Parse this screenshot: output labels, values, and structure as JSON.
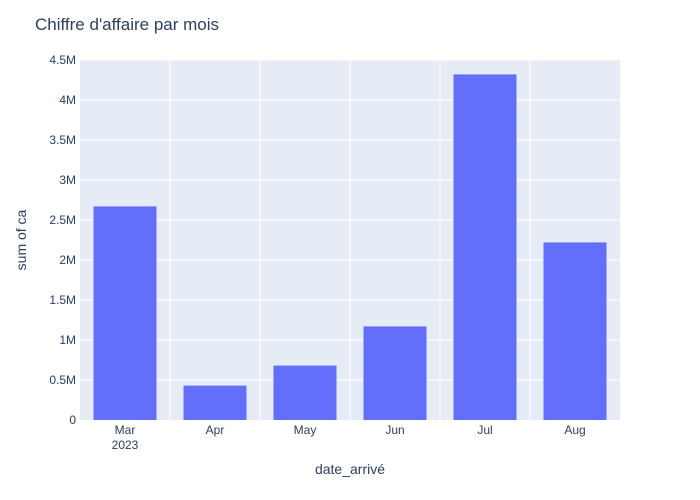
{
  "chart_data": {
    "type": "bar",
    "title": "Chiffre d'affaire par mois",
    "xlabel": "date_arrivé",
    "ylabel": "sum of ca",
    "categories": [
      "Mar",
      "Apr",
      "May",
      "Jun",
      "Jul",
      "Aug"
    ],
    "category_sublabels": [
      "2023",
      "",
      "",
      "",
      "",
      ""
    ],
    "values": [
      2670000,
      430000,
      680000,
      1170000,
      4320000,
      2220000
    ],
    "ylim": [
      0,
      4500000
    ],
    "yticks": [
      0,
      500000,
      1000000,
      1500000,
      2000000,
      2500000,
      3000000,
      3500000,
      4000000,
      4500000
    ],
    "ytick_labels": [
      "0",
      "0.5M",
      "1M",
      "1.5M",
      "2M",
      "2.5M",
      "3M",
      "3.5M",
      "4M",
      "4.5M"
    ],
    "grid": true,
    "colors": {
      "bar": "#636efa",
      "plot_bg": "#e5ecf6",
      "grid": "#ffffff",
      "text": "#2a3f5f"
    }
  }
}
